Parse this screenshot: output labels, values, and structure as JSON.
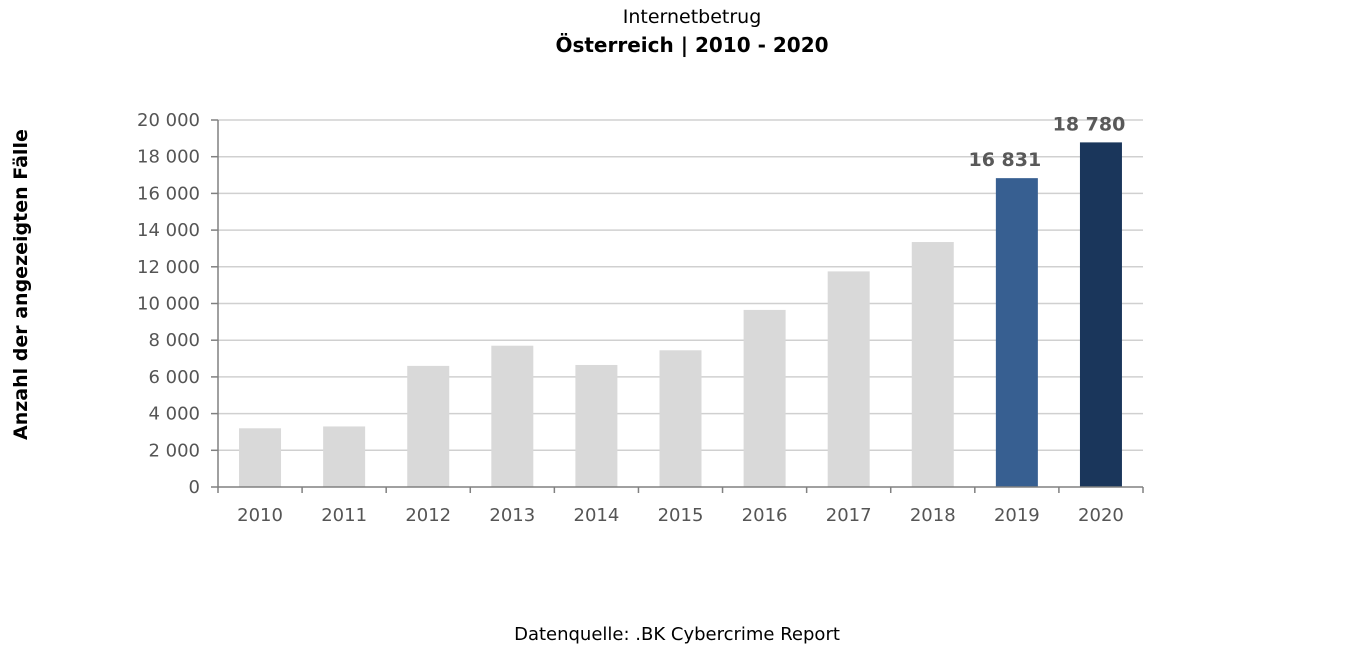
{
  "chart_data": {
    "type": "bar",
    "title": "Internetbetrug",
    "subtitle": "Österreich |  2010 - 2020",
    "xlabel": "",
    "ylabel": "Anzahl der angezeigten Fälle",
    "categories": [
      "2010",
      "2011",
      "2012",
      "2013",
      "2014",
      "2015",
      "2016",
      "2017",
      "2018",
      "2019",
      "2020"
    ],
    "values": [
      3200,
      3300,
      6600,
      7700,
      6650,
      7450,
      9650,
      11750,
      13350,
      16831,
      18780
    ],
    "value_labels": [
      "",
      "",
      "",
      "",
      "",
      "",
      "",
      "",
      "",
      "16 831",
      "18 780"
    ],
    "ylim": [
      0,
      20000
    ],
    "yticks": [
      0,
      2000,
      4000,
      6000,
      8000,
      10000,
      12000,
      14000,
      16000,
      18000,
      20000
    ],
    "ytick_labels": [
      "0",
      "2 000",
      "4 000",
      "6 000",
      "8 000",
      "10 000",
      "12 000",
      "14 000",
      "16 000",
      "18 000",
      "20 000"
    ],
    "grid": true,
    "colors": {
      "default": "#d9d9d9",
      "2019": "#375f91",
      "2020": "#1a365b",
      "grid": "#d0d0d0",
      "axis": "#808080"
    }
  },
  "source": "Datenquelle: .BK Cybercrime Report"
}
